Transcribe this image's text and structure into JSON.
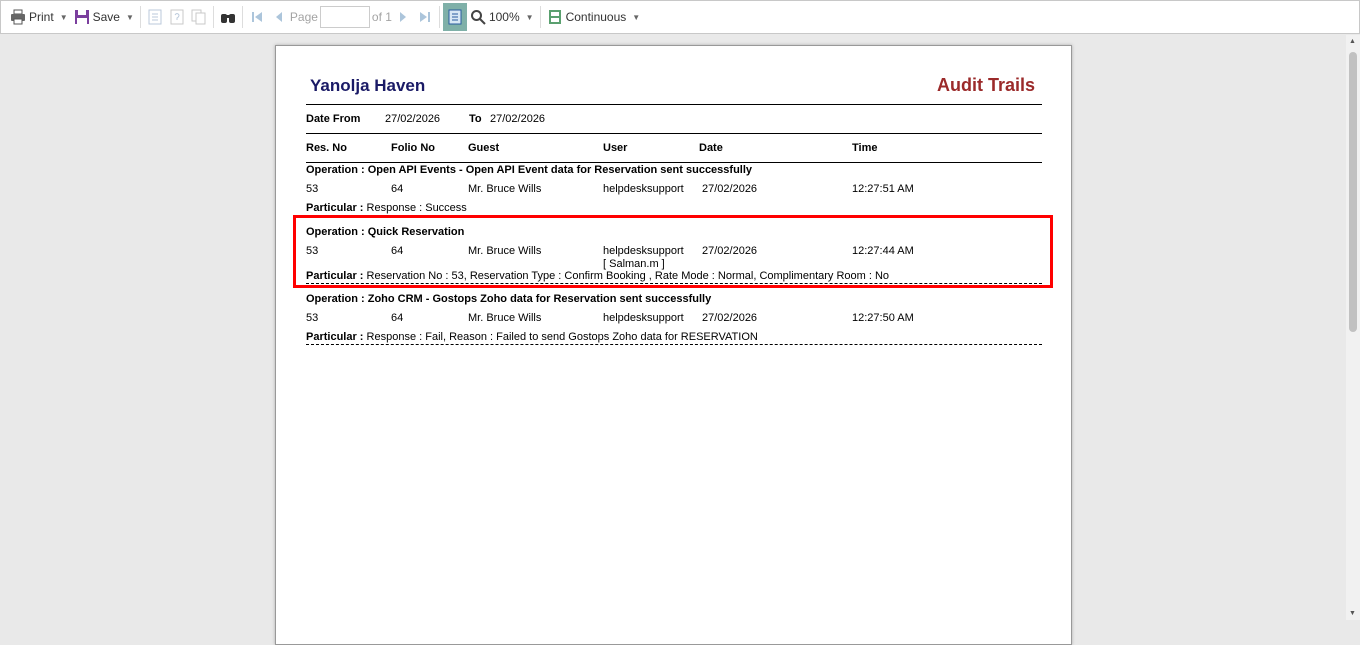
{
  "toolbar": {
    "print": "Print",
    "save": "Save",
    "page_label": "Page",
    "page_value": "",
    "of_label": "of 1",
    "zoom": "100%",
    "view_mode": "Continuous"
  },
  "report": {
    "hotel": "Yanolja Haven",
    "title": "Audit Trails",
    "date_from_label": "Date From",
    "date_from": "27/02/2026",
    "to_label": "To",
    "date_to": "27/02/2026",
    "columns": [
      "Res. No",
      "Folio No",
      "Guest",
      "User",
      "Date",
      "Time"
    ],
    "entries": [
      {
        "operation": "Operation : Open API Events - Open API Event data for Reservation sent successfully",
        "res_no": "53",
        "folio_no": "64",
        "guest": "Mr. Bruce Wills",
        "user": "helpdesksupport",
        "user2": "",
        "date": "27/02/2026",
        "time": "12:27:51 AM",
        "particular_label": "Particular :",
        "particular": " Response : Success"
      },
      {
        "operation": "Operation : Quick Reservation",
        "res_no": "53",
        "folio_no": "64",
        "guest": "Mr. Bruce Wills",
        "user": "helpdesksupport",
        "user2": "[ Salman.m ]",
        "date": "27/02/2026",
        "time": "12:27:44 AM",
        "particular_label": "Particular :",
        "particular": " Reservation No : 53, Reservation Type : Confirm Booking , Rate Mode : Normal, Complimentary Room : No",
        "highlighted": true
      },
      {
        "operation": "Operation : Zoho CRM - Gostops Zoho data for Reservation sent successfully",
        "res_no": "53",
        "folio_no": "64",
        "guest": "Mr. Bruce Wills",
        "user": "helpdesksupport",
        "user2": "",
        "date": "27/02/2026",
        "time": "12:27:50 AM",
        "particular_label": "Particular :",
        "particular": " Response : Fail, Reason : Failed to send Gostops Zoho data for RESERVATION"
      }
    ]
  },
  "colors": {
    "hotel": "#1a1a66",
    "title": "#9b2a2a",
    "highlight": "#ff0000"
  }
}
